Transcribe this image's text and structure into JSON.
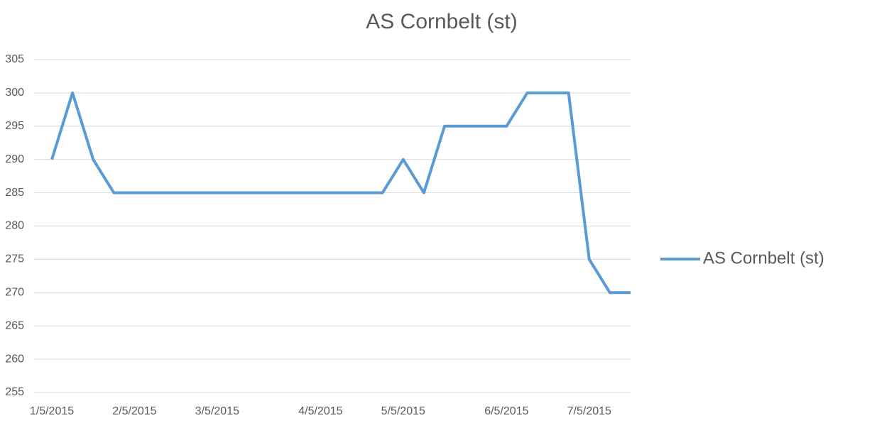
{
  "chart_data": {
    "type": "line",
    "title": "AS Cornbelt (st)",
    "categories": [
      "1/5/2015",
      null,
      null,
      null,
      "2/5/2015",
      null,
      null,
      null,
      "3/5/2015",
      null,
      null,
      null,
      null,
      "4/5/2015",
      null,
      null,
      null,
      "5/5/2015",
      null,
      null,
      null,
      null,
      "6/5/2015",
      null,
      null,
      null,
      "7/5/2015",
      null,
      null
    ],
    "series": [
      {
        "name": "AS Cornbelt (st)",
        "color": "#5b9bd5",
        "values": [
          290,
          300,
          290,
          285,
          285,
          285,
          285,
          285,
          285,
          285,
          285,
          285,
          285,
          285,
          285,
          285,
          285,
          290,
          285,
          295,
          295,
          295,
          295,
          300,
          300,
          300,
          275,
          270,
          270
        ]
      }
    ],
    "ylim": [
      255,
      305
    ],
    "yticks": [
      255,
      260,
      265,
      270,
      275,
      280,
      285,
      290,
      295,
      300,
      305
    ],
    "grid": true,
    "legend": "right"
  }
}
